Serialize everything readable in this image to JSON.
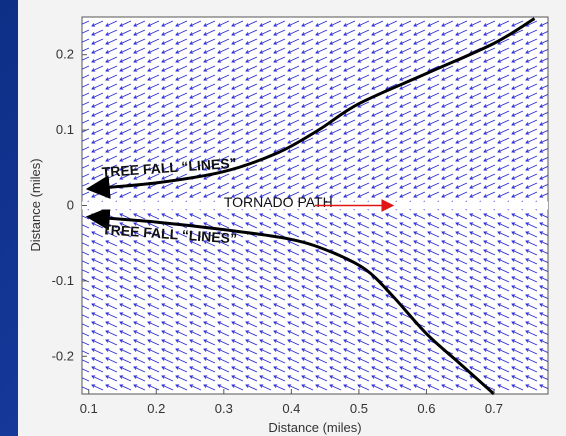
{
  "chart_data": {
    "type": "quiver",
    "title": "",
    "xlabel": "Distance (miles)",
    "ylabel": "Distance (miles)",
    "xlim": [
      0.09,
      0.78
    ],
    "ylim": [
      -0.25,
      0.25
    ],
    "xticks": [
      "0.1",
      "0.2",
      "0.3",
      "0.4",
      "0.5",
      "0.6",
      "0.7"
    ],
    "yticks": [
      "0.2",
      "0.1",
      "0",
      "-0.1",
      "-0.2"
    ],
    "grid": false,
    "field_color": "#2a2ad8",
    "field_description": "upper half arrows point left-down, lower half arrows point left-up",
    "curves": [
      {
        "name": "upper-tree-fall-line",
        "color": "#000000",
        "points": [
          [
            0.1,
            0.022
          ],
          [
            0.2,
            0.03
          ],
          [
            0.3,
            0.045
          ],
          [
            0.38,
            0.07
          ],
          [
            0.44,
            0.1
          ],
          [
            0.5,
            0.135
          ],
          [
            0.6,
            0.175
          ],
          [
            0.7,
            0.215
          ],
          [
            0.76,
            0.248
          ]
        ]
      },
      {
        "name": "lower-tree-fall-line",
        "color": "#000000",
        "points": [
          [
            0.1,
            -0.015
          ],
          [
            0.2,
            -0.022
          ],
          [
            0.3,
            -0.032
          ],
          [
            0.4,
            -0.045
          ],
          [
            0.46,
            -0.062
          ],
          [
            0.51,
            -0.085
          ],
          [
            0.55,
            -0.12
          ],
          [
            0.6,
            -0.17
          ],
          [
            0.65,
            -0.21
          ],
          [
            0.7,
            -0.25
          ]
        ]
      }
    ],
    "annotations": [
      {
        "text": "TREE FALL “LINES”",
        "x": 0.12,
        "y": 0.035
      },
      {
        "text": "TREE FALL “LINES”",
        "x": 0.12,
        "y": -0.03
      },
      {
        "text": "TORNADO PATH",
        "x": 0.3,
        "y": 0.003
      }
    ],
    "tornado_arrow": {
      "from": [
        0.435,
        0.0
      ],
      "to": [
        0.55,
        0.0
      ],
      "color": "#e01515"
    }
  }
}
